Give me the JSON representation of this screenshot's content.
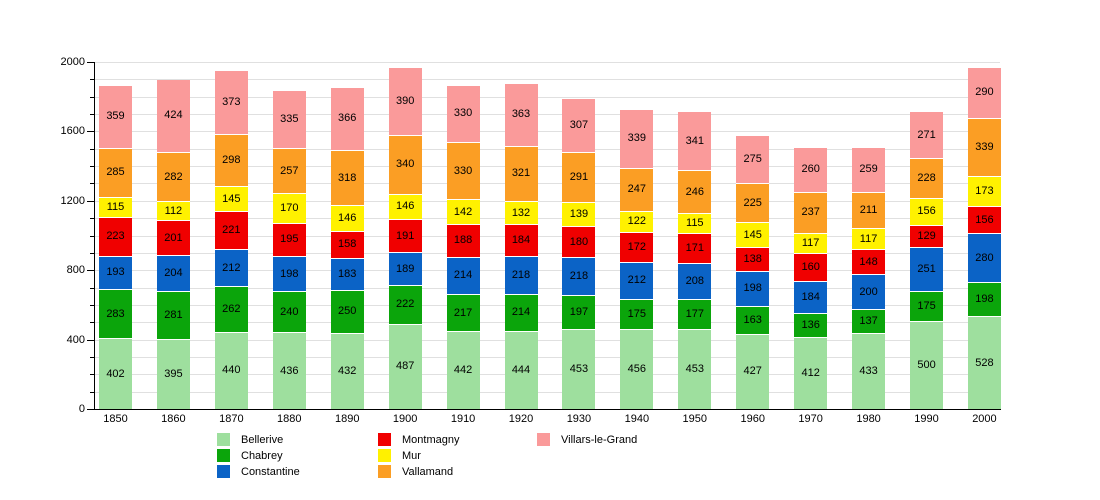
{
  "chart_data": {
    "type": "bar",
    "stacked": true,
    "title": "",
    "xlabel": "",
    "ylabel": "",
    "categories": [
      "1850",
      "1860",
      "1870",
      "1880",
      "1890",
      "1900",
      "1910",
      "1920",
      "1930",
      "1940",
      "1950",
      "1960",
      "1970",
      "1980",
      "1990",
      "2000"
    ],
    "series": [
      {
        "name": "Bellerive",
        "color": "#9EDF9E",
        "values": [
          402,
          395,
          440,
          436,
          432,
          487,
          442,
          444,
          453,
          456,
          453,
          427,
          412,
          433,
          500,
          528
        ]
      },
      {
        "name": "Chabrey",
        "color": "#0BA50B",
        "values": [
          283,
          281,
          262,
          240,
          250,
          222,
          217,
          214,
          197,
          175,
          177,
          163,
          136,
          137,
          175,
          198
        ]
      },
      {
        "name": "Constantine",
        "color": "#0B63C6",
        "values": [
          193,
          204,
          212,
          198,
          183,
          189,
          214,
          218,
          218,
          212,
          208,
          198,
          184,
          200,
          251,
          280
        ]
      },
      {
        "name": "Montmagny",
        "color": "#F00000",
        "values": [
          223,
          201,
          221,
          195,
          158,
          191,
          188,
          184,
          180,
          172,
          171,
          138,
          160,
          148,
          129,
          156
        ]
      },
      {
        "name": "Mur",
        "color": "#FFF100",
        "values": [
          115,
          112,
          145,
          170,
          146,
          146,
          142,
          132,
          139,
          122,
          115,
          145,
          117,
          117,
          156,
          173
        ]
      },
      {
        "name": "Vallamand",
        "color": "#FB9E24",
        "values": [
          285,
          282,
          298,
          257,
          318,
          340,
          330,
          321,
          291,
          247,
          246,
          225,
          237,
          211,
          228,
          339
        ]
      },
      {
        "name": "Villars-le-Grand",
        "color": "#FA9A9A",
        "values": [
          359,
          424,
          373,
          335,
          366,
          390,
          330,
          363,
          307,
          339,
          341,
          275,
          260,
          259,
          271,
          290
        ]
      }
    ],
    "ylim": [
      0,
      2000
    ],
    "y_major_ticks": [
      0,
      400,
      800,
      1200,
      1600,
      2000
    ],
    "y_minor_step": 100,
    "grid": true,
    "bar_value_labels_shown": true,
    "legend_position": "bottom",
    "legend_columns": [
      [
        "Bellerive",
        "Chabrey",
        "Constantine"
      ],
      [
        "Montmagny",
        "Mur",
        "Vallamand"
      ],
      [
        "Villars-le-Grand"
      ]
    ]
  }
}
